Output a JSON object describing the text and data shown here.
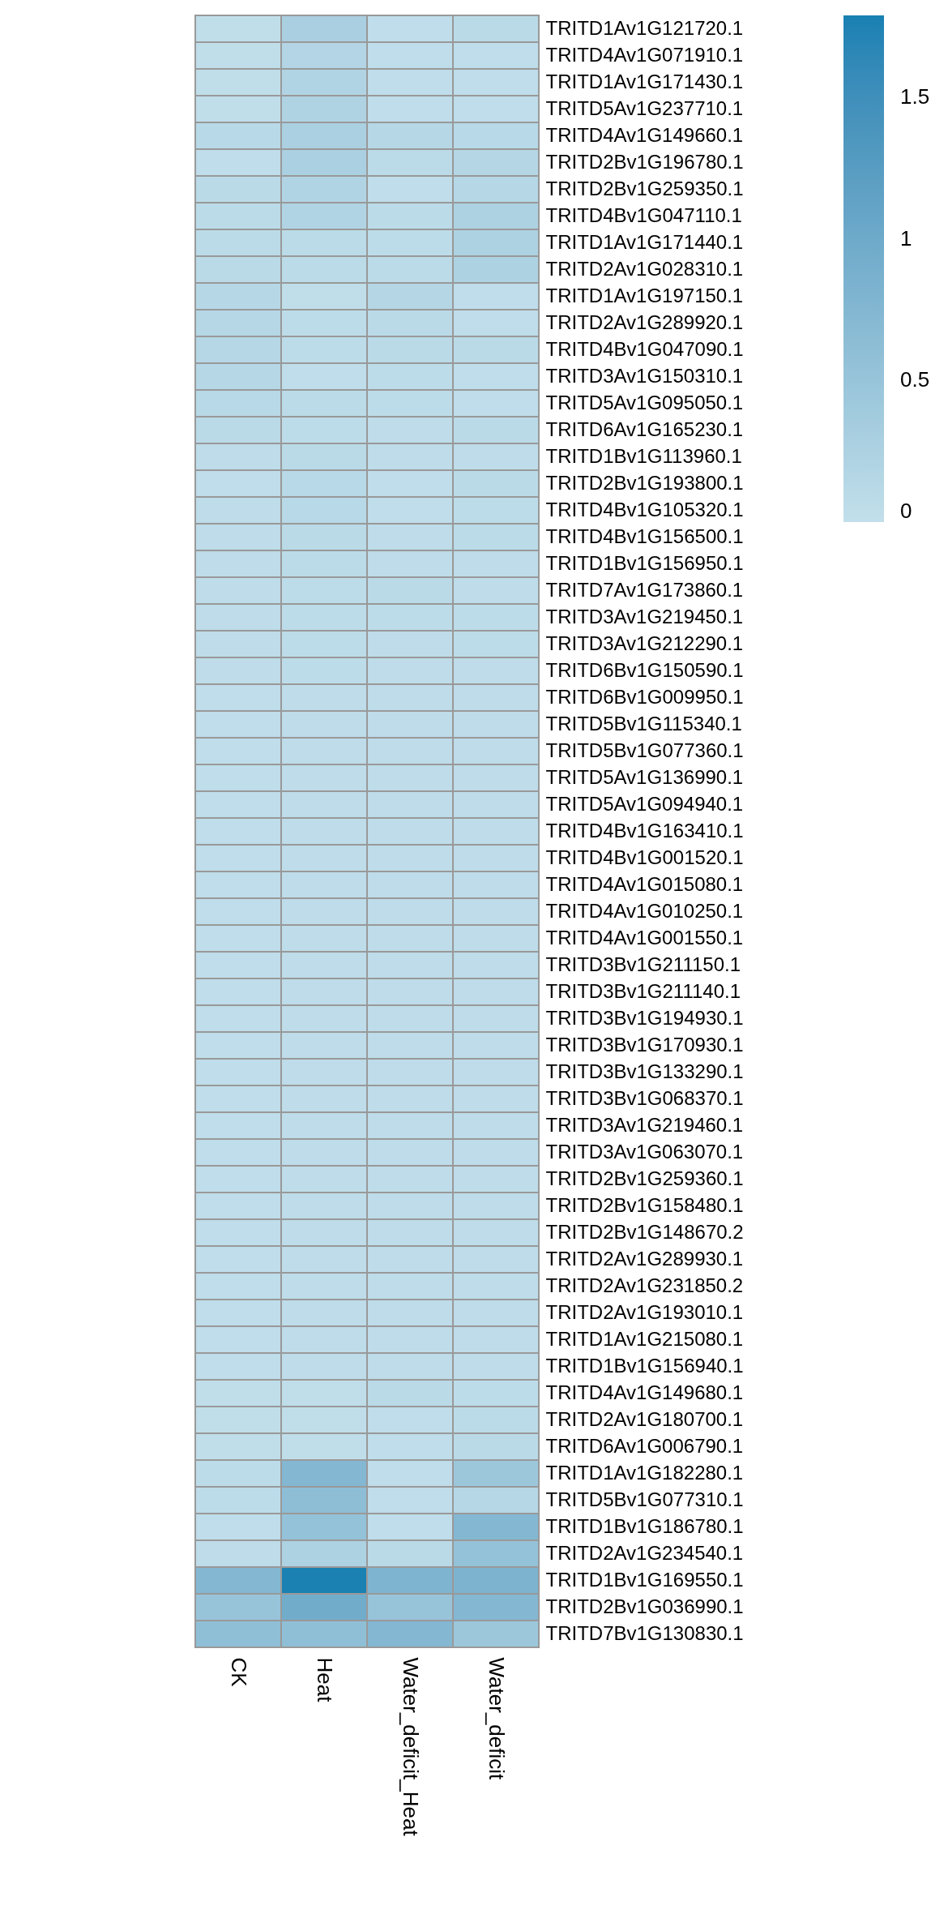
{
  "chart_data": {
    "type": "heatmap",
    "categories": [
      "CK",
      "Heat",
      "Water_deficit_Heat",
      "Water_deficit"
    ],
    "y_categories": [
      "TRITD1Av1G121720.1",
      "TRITD4Av1G071910.1",
      "TRITD1Av1G171430.1",
      "TRITD5Av1G237710.1",
      "TRITD4Av1G149660.1",
      "TRITD2Bv1G196780.1",
      "TRITD2Bv1G259350.1",
      "TRITD4Bv1G047110.1",
      "TRITD1Av1G171440.1",
      "TRITD2Av1G028310.1",
      "TRITD1Av1G197150.1",
      "TRITD2Av1G289920.1",
      "TRITD4Bv1G047090.1",
      "TRITD3Av1G150310.1",
      "TRITD5Av1G095050.1",
      "TRITD6Av1G165230.1",
      "TRITD1Bv1G113960.1",
      "TRITD2Bv1G193800.1",
      "TRITD4Bv1G105320.1",
      "TRITD4Bv1G156500.1",
      "TRITD1Bv1G156950.1",
      "TRITD7Av1G173860.1",
      "TRITD3Av1G219450.1",
      "TRITD3Av1G212290.1",
      "TRITD6Bv1G150590.1",
      "TRITD6Bv1G009950.1",
      "TRITD5Bv1G115340.1",
      "TRITD5Bv1G077360.1",
      "TRITD5Av1G136990.1",
      "TRITD5Av1G094940.1",
      "TRITD4Bv1G163410.1",
      "TRITD4Bv1G001520.1",
      "TRITD4Av1G015080.1",
      "TRITD4Av1G010250.1",
      "TRITD4Av1G001550.1",
      "TRITD3Bv1G211150.1",
      "TRITD3Bv1G211140.1",
      "TRITD3Bv1G194930.1",
      "TRITD3Bv1G170930.1",
      "TRITD3Bv1G133290.1",
      "TRITD3Bv1G068370.1",
      "TRITD3Av1G219460.1",
      "TRITD3Av1G063070.1",
      "TRITD2Bv1G259360.1",
      "TRITD2Bv1G158480.1",
      "TRITD2Bv1G148670.2",
      "TRITD2Av1G289930.1",
      "TRITD2Av1G231850.2",
      "TRITD2Av1G193010.1",
      "TRITD1Av1G215080.1",
      "TRITD1Bv1G156940.1",
      "TRITD4Av1G149680.1",
      "TRITD2Av1G180700.1",
      "TRITD6Av1G006790.1",
      "TRITD1Av1G182280.1",
      "TRITD5Bv1G077310.1",
      "TRITD1Bv1G186780.1",
      "TRITD2Av1G234540.1",
      "TRITD1Bv1G169550.1",
      "TRITD2Bv1G036990.1",
      "TRITD7Bv1G130830.1"
    ],
    "cells": [
      [
        0.02,
        0.3,
        0.03,
        0.1
      ],
      [
        0.02,
        0.18,
        0.03,
        0.03
      ],
      [
        0.02,
        0.2,
        0.03,
        0.03
      ],
      [
        0.02,
        0.23,
        0.03,
        0.03
      ],
      [
        0.12,
        0.28,
        0.15,
        0.12
      ],
      [
        0.03,
        0.28,
        0.08,
        0.17
      ],
      [
        0.1,
        0.2,
        0.03,
        0.15
      ],
      [
        0.08,
        0.2,
        0.08,
        0.25
      ],
      [
        0.08,
        0.08,
        0.06,
        0.25
      ],
      [
        0.1,
        0.08,
        0.08,
        0.25
      ],
      [
        0.14,
        0.02,
        0.17,
        0.03
      ],
      [
        0.15,
        0.06,
        0.09,
        0.04
      ],
      [
        0.15,
        0.06,
        0.09,
        0.09
      ],
      [
        0.15,
        0.03,
        0.06,
        0.04
      ],
      [
        0.12,
        0.08,
        0.06,
        0.04
      ],
      [
        0.1,
        0.06,
        0.05,
        0.09
      ],
      [
        0.05,
        0.1,
        0.05,
        0.05
      ],
      [
        0.03,
        0.12,
        0.03,
        0.09
      ],
      [
        0.05,
        0.12,
        0.04,
        0.06
      ],
      [
        0.05,
        0.1,
        0.05,
        0.08
      ],
      [
        0.05,
        0.08,
        0.05,
        0.05
      ],
      [
        0.05,
        0.06,
        0.09,
        0.05
      ],
      [
        0.05,
        0.06,
        0.06,
        0.06
      ],
      [
        0.05,
        0.06,
        0.05,
        0.06
      ],
      [
        0.05,
        0.06,
        0.05,
        0.05
      ],
      [
        0.04,
        0.05,
        0.05,
        0.05
      ],
      [
        0.04,
        0.05,
        0.05,
        0.05
      ],
      [
        0.04,
        0.05,
        0.05,
        0.05
      ],
      [
        0.04,
        0.05,
        0.05,
        0.05
      ],
      [
        0.04,
        0.05,
        0.05,
        0.05
      ],
      [
        0.04,
        0.05,
        0.05,
        0.05
      ],
      [
        0.04,
        0.05,
        0.05,
        0.05
      ],
      [
        0.04,
        0.05,
        0.05,
        0.05
      ],
      [
        0.04,
        0.05,
        0.05,
        0.05
      ],
      [
        0.04,
        0.05,
        0.05,
        0.05
      ],
      [
        0.04,
        0.05,
        0.05,
        0.05
      ],
      [
        0.04,
        0.05,
        0.05,
        0.05
      ],
      [
        0.04,
        0.05,
        0.05,
        0.05
      ],
      [
        0.04,
        0.05,
        0.05,
        0.05
      ],
      [
        0.04,
        0.05,
        0.05,
        0.05
      ],
      [
        0.04,
        0.05,
        0.05,
        0.05
      ],
      [
        0.04,
        0.05,
        0.05,
        0.05
      ],
      [
        0.04,
        0.05,
        0.05,
        0.05
      ],
      [
        0.04,
        0.05,
        0.05,
        0.05
      ],
      [
        0.04,
        0.05,
        0.05,
        0.05
      ],
      [
        0.04,
        0.05,
        0.05,
        0.05
      ],
      [
        0.04,
        0.05,
        0.05,
        0.05
      ],
      [
        0.04,
        0.05,
        0.05,
        0.05
      ],
      [
        0.04,
        0.05,
        0.05,
        0.05
      ],
      [
        0.04,
        0.05,
        0.05,
        0.05
      ],
      [
        0.04,
        0.05,
        0.05,
        0.05
      ],
      [
        0.02,
        0.02,
        0.1,
        0.06
      ],
      [
        0.02,
        0.02,
        0.03,
        0.08
      ],
      [
        0.02,
        0.02,
        0.03,
        0.1
      ],
      [
        0.06,
        0.75,
        0.03,
        0.45
      ],
      [
        0.06,
        0.62,
        0.03,
        0.15
      ],
      [
        0.03,
        0.55,
        0.03,
        0.75
      ],
      [
        0.05,
        0.25,
        0.1,
        0.55
      ],
      [
        0.75,
        1.78,
        0.8,
        0.82
      ],
      [
        0.5,
        0.95,
        0.5,
        0.75
      ],
      [
        0.6,
        0.6,
        0.75,
        0.45
      ]
    ],
    "clim": [
      0,
      1.79
    ],
    "cticks": [
      0,
      0.5,
      1,
      1.5
    ]
  }
}
